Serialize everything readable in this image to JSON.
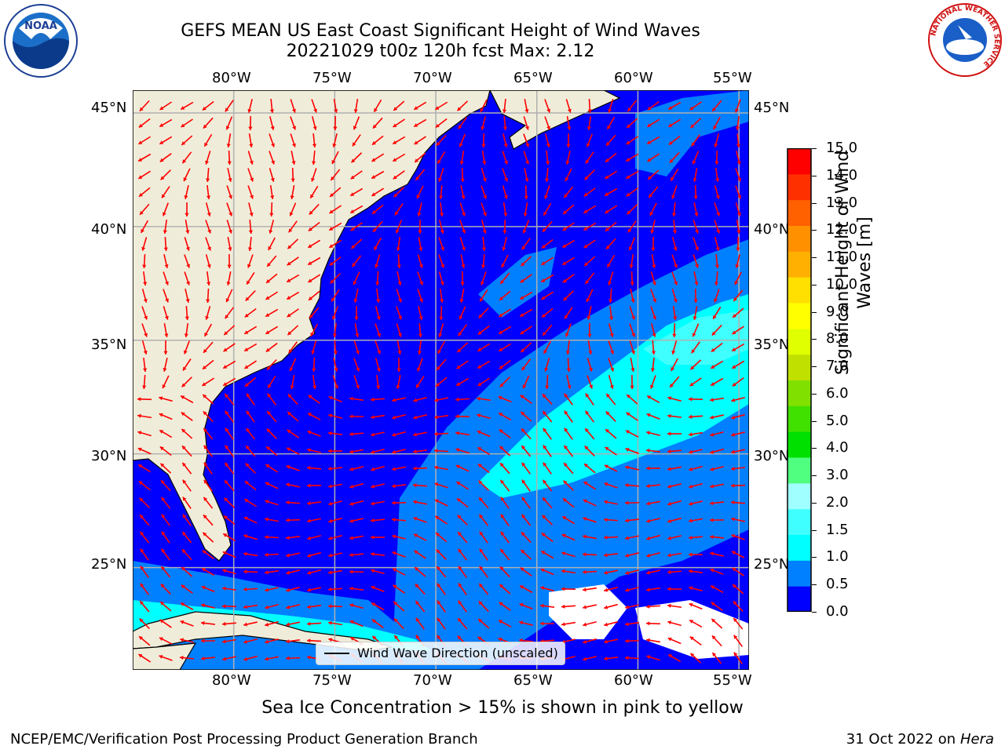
{
  "title": {
    "line1": "GEFS MEAN US East Coast Significant Height of Wind Waves",
    "line2": "20221029 t00z 120h fcst   Max: 2.12"
  },
  "map": {
    "lon_ticks_top": [
      "80°W",
      "75°W",
      "70°W",
      "65°W",
      "60°W",
      "55°W"
    ],
    "lon_ticks_bottom": [
      "80°W",
      "75°W",
      "70°W",
      "65°W",
      "60°W",
      "55°W"
    ],
    "lat_ticks_left": [
      "45°N",
      "40°N",
      "35°N",
      "30°N",
      "25°N"
    ],
    "lat_ticks_right": [
      "45°N",
      "40°N",
      "35°N",
      "30°N",
      "25°N"
    ],
    "lon_range": [
      -85,
      -54.5
    ],
    "lat_range": [
      20.5,
      46
    ],
    "colors": {
      "land": "#efedd9",
      "ocean_deep": "#0000ff",
      "ocean_mid": "#0080ff",
      "ocean_light": "#00ffff",
      "arrow": "#ff0000",
      "grid": "#b0b0b0"
    },
    "legend": "Wind Wave Direction (unscaled)"
  },
  "colorbar": {
    "ticks": [
      "15.0",
      "14.0",
      "13.0",
      "12.0",
      "11.0",
      "10.0",
      "9.0",
      "8.0",
      "7.0",
      "6.0",
      "5.0",
      "4.0",
      "3.0",
      "2.0",
      "1.5",
      "1.0",
      "0.5",
      "0.0"
    ],
    "colors": [
      "#0000ff",
      "#0080ff",
      "#00ffff",
      "#40ffff",
      "#a0ffff",
      "#50ff80",
      "#00e000",
      "#40e000",
      "#80e000",
      "#c0e000",
      "#e0ff00",
      "#ffff00",
      "#ffe000",
      "#ffb000",
      "#ff9000",
      "#ff6000",
      "#ff3000",
      "#ff0000"
    ],
    "label": "Significant Height of Wind Waves [m]"
  },
  "note": "Sea Ice Concentration > 15% is shown in pink to yellow",
  "footer": {
    "left": "NCEP/EMC/Verification Post Processing Product Generation Branch",
    "right_date": "31 Oct 2022 on ",
    "right_host": "Hera"
  },
  "logos": {
    "noaa": "NOAA",
    "nws_ring": "NATIONAL WEATHER SERVICE"
  }
}
